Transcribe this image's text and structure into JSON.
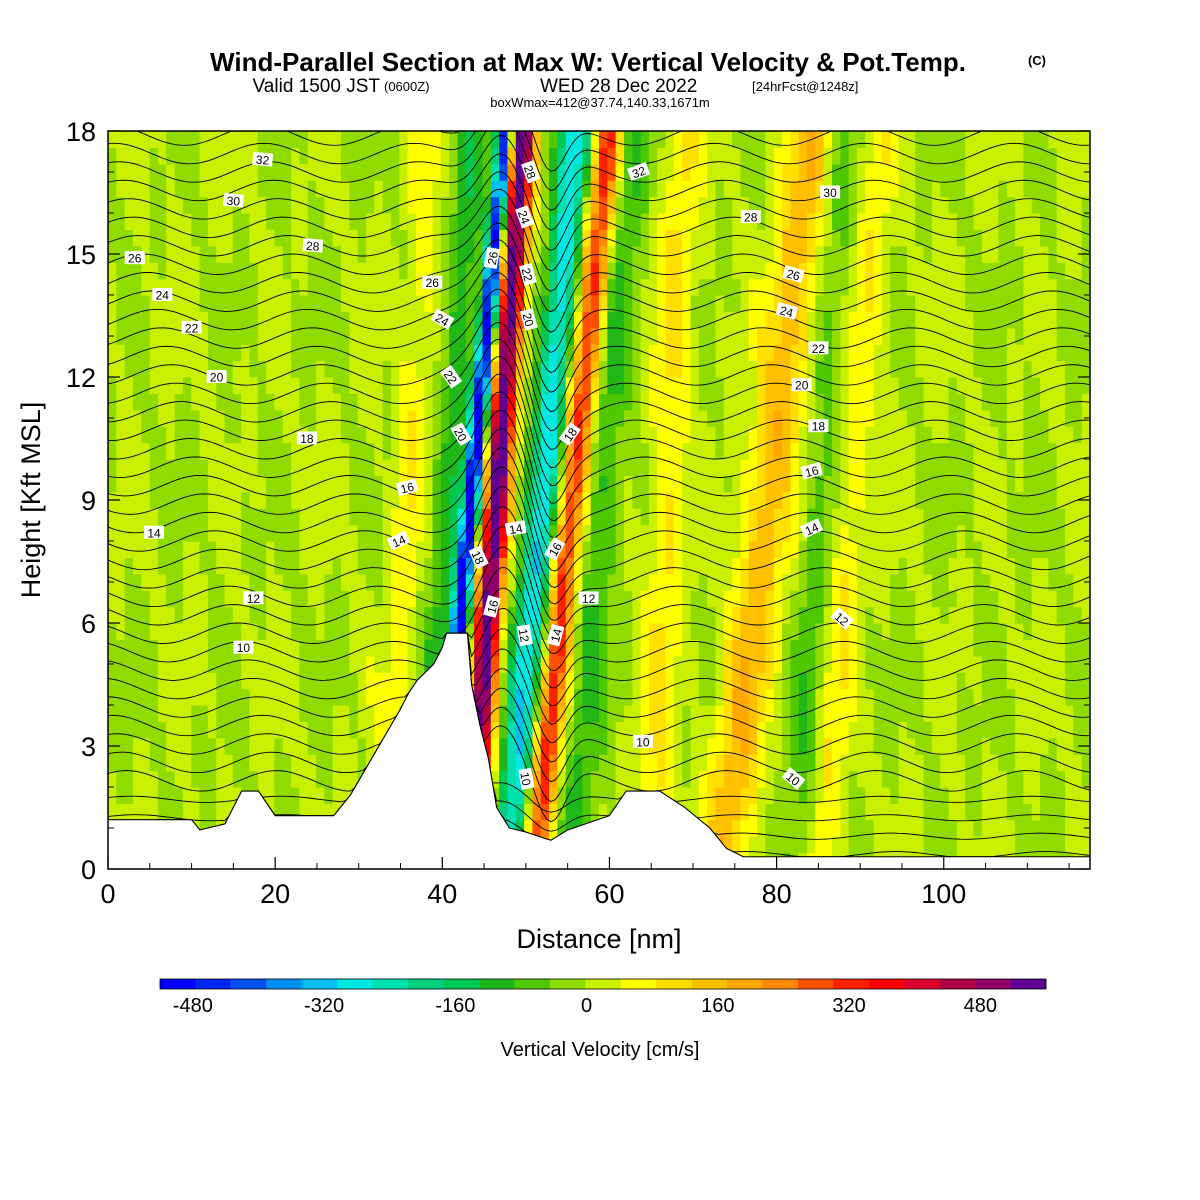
{
  "title": {
    "main": "Wind-Parallel Section at Max W: Vertical Velocity & Pot.Temp.",
    "copyright": "(C)",
    "valid_prefix": "Valid 1500 JST",
    "valid_zulu": "(0600Z)",
    "valid_date": "WED 28 Dec 2022",
    "fcst": "[24hrFcst@1248z]",
    "boxline": "boxWmax=412@37.74,140.33,1671m"
  },
  "chart_data": {
    "type": "heatmap",
    "xlabel": "Distance [nm]",
    "ylabel": "Height [Kft MSL]",
    "xlim": [
      0,
      117.5
    ],
    "ylim": [
      0,
      18
    ],
    "x_ticks": [
      0,
      20,
      40,
      60,
      80,
      100
    ],
    "y_ticks": [
      0,
      3,
      6,
      9,
      12,
      15,
      18
    ],
    "colorbar": {
      "label": "Vertical Velocity [cm/s]",
      "ticks": [
        "-480",
        "-320",
        "-160",
        "0",
        "160",
        "320",
        "480"
      ],
      "tick_values": [
        -480,
        -320,
        -160,
        0,
        160,
        320,
        480
      ],
      "range": [
        -520,
        560
      ],
      "colors": [
        "#0000ff",
        "#0028f0",
        "#0050f0",
        "#0090f0",
        "#00c0f0",
        "#00e8e0",
        "#00e0b0",
        "#00d080",
        "#00c850",
        "#20b818",
        "#50c800",
        "#90dc00",
        "#c8f000",
        "#ffff00",
        "#ffe000",
        "#ffc000",
        "#ffa800",
        "#ff8800",
        "#ff5000",
        "#ff2000",
        "#ff0000",
        "#d8002a",
        "#b00048",
        "#900068",
        "#600090"
      ]
    },
    "vertical_velocity_features": [
      {
        "x": 46.5,
        "peak": 560,
        "width": 1.5,
        "tilt": 0.35
      },
      {
        "x": 43.5,
        "peak": -520,
        "width": 1.0,
        "tilt": 0.45
      },
      {
        "x": 52.0,
        "peak": -300,
        "width": 2.0,
        "tilt": 0.45
      },
      {
        "x": 55.5,
        "peak": 330,
        "width": 1.7,
        "tilt": 0.5
      },
      {
        "x": 41.0,
        "peak": -120,
        "width": 2.0,
        "tilt": 0.3
      },
      {
        "x": 59.0,
        "peak": -100,
        "width": 2.2,
        "tilt": 0.4
      },
      {
        "x": 36.0,
        "peak": 70,
        "width": 2.0,
        "tilt": 0.3
      },
      {
        "x": 67.0,
        "peak": 90,
        "width": 2.2,
        "tilt": 0.2
      },
      {
        "x": 79.0,
        "peak": 160,
        "width": 3.0,
        "tilt": 0.6
      },
      {
        "x": 85.0,
        "peak": -70,
        "width": 2.0,
        "tilt": 0.3
      },
      {
        "x": 89.0,
        "peak": 80,
        "width": 2.0,
        "tilt": 0.4
      }
    ],
    "terrain_kft": [
      [
        0,
        1.2
      ],
      [
        10,
        1.2
      ],
      [
        11,
        0.95
      ],
      [
        14,
        1.1
      ],
      [
        16,
        1.9
      ],
      [
        18,
        1.9
      ],
      [
        20,
        1.3
      ],
      [
        27,
        1.3
      ],
      [
        29,
        1.8
      ],
      [
        31,
        2.5
      ],
      [
        33,
        3.2
      ],
      [
        35,
        3.9
      ],
      [
        36,
        4.3
      ],
      [
        37,
        4.6
      ],
      [
        39,
        5.0
      ],
      [
        40,
        5.4
      ],
      [
        40.5,
        5.75
      ],
      [
        43,
        5.75
      ],
      [
        43.5,
        4.5
      ],
      [
        44.5,
        3.5
      ],
      [
        45.5,
        2.7
      ],
      [
        46.5,
        1.5
      ],
      [
        48,
        1.0
      ],
      [
        50,
        0.9
      ],
      [
        53,
        0.7
      ],
      [
        55,
        0.95
      ],
      [
        60,
        1.3
      ],
      [
        62,
        1.9
      ],
      [
        66,
        1.9
      ],
      [
        69,
        1.5
      ],
      [
        72,
        1.0
      ],
      [
        74,
        0.5
      ],
      [
        76,
        0.3
      ],
      [
        82,
        0.3
      ],
      [
        117.5,
        0.3
      ]
    ],
    "theta_contour_labels": [
      {
        "text": "32",
        "x": 18.5,
        "y": 17.3,
        "rot": 5
      },
      {
        "text": "30",
        "x": 15.0,
        "y": 16.3,
        "rot": 5
      },
      {
        "text": "28",
        "x": 24.5,
        "y": 15.2,
        "rot": 5
      },
      {
        "text": "26",
        "x": 3.2,
        "y": 14.9,
        "rot": 0
      },
      {
        "text": "24",
        "x": 6.5,
        "y": 14.0,
        "rot": 0
      },
      {
        "text": "22",
        "x": 10.0,
        "y": 13.2,
        "rot": 0
      },
      {
        "text": "20",
        "x": 13.0,
        "y": 12.0,
        "rot": 0
      },
      {
        "text": "18",
        "x": 23.8,
        "y": 10.5,
        "rot": 0
      },
      {
        "text": "14",
        "x": 5.5,
        "y": 8.2,
        "rot": 0
      },
      {
        "text": "12",
        "x": 17.4,
        "y": 6.6,
        "rot": 0
      },
      {
        "text": "10",
        "x": 16.2,
        "y": 5.4,
        "rot": 0
      },
      {
        "text": "16",
        "x": 35.8,
        "y": 9.3,
        "rot": -15
      },
      {
        "text": "14",
        "x": 34.8,
        "y": 8.0,
        "rot": -25
      },
      {
        "text": "26",
        "x": 38.8,
        "y": 14.3,
        "rot": 0
      },
      {
        "text": "24",
        "x": 40.0,
        "y": 13.4,
        "rot": 30
      },
      {
        "text": "22",
        "x": 41.0,
        "y": 12.0,
        "rot": 55
      },
      {
        "text": "20",
        "x": 42.2,
        "y": 10.6,
        "rot": 60
      },
      {
        "text": "18",
        "x": 44.3,
        "y": 7.6,
        "rot": 65
      },
      {
        "text": "16",
        "x": 46.0,
        "y": 6.4,
        "rot": -75
      },
      {
        "text": "14",
        "x": 48.8,
        "y": 8.3,
        "rot": -10
      },
      {
        "text": "12",
        "x": 49.8,
        "y": 5.7,
        "rot": 80
      },
      {
        "text": "14",
        "x": 53.6,
        "y": 5.7,
        "rot": -75
      },
      {
        "text": "16",
        "x": 53.5,
        "y": 7.8,
        "rot": -60
      },
      {
        "text": "18",
        "x": 55.3,
        "y": 10.6,
        "rot": -55
      },
      {
        "text": "12",
        "x": 57.5,
        "y": 6.6,
        "rot": 0
      },
      {
        "text": "10",
        "x": 50.0,
        "y": 2.2,
        "rot": 80
      },
      {
        "text": "28",
        "x": 50.5,
        "y": 17.0,
        "rot": 70
      },
      {
        "text": "26",
        "x": 46.0,
        "y": 14.9,
        "rot": -80
      },
      {
        "text": "24",
        "x": 49.8,
        "y": 15.9,
        "rot": 70
      },
      {
        "text": "22",
        "x": 50.2,
        "y": 14.5,
        "rot": 75
      },
      {
        "text": "20",
        "x": 50.3,
        "y": 13.4,
        "rot": 75
      },
      {
        "text": "32",
        "x": 63.5,
        "y": 17.0,
        "rot": -20
      },
      {
        "text": "30",
        "x": 86.4,
        "y": 16.5,
        "rot": 0
      },
      {
        "text": "28",
        "x": 76.9,
        "y": 15.9,
        "rot": 0
      },
      {
        "text": "26",
        "x": 82.0,
        "y": 14.5,
        "rot": 15
      },
      {
        "text": "24",
        "x": 81.2,
        "y": 13.6,
        "rot": 15
      },
      {
        "text": "22",
        "x": 85.0,
        "y": 12.7,
        "rot": 0
      },
      {
        "text": "20",
        "x": 83.0,
        "y": 11.8,
        "rot": 0
      },
      {
        "text": "18",
        "x": 85.0,
        "y": 10.8,
        "rot": 0
      },
      {
        "text": "16",
        "x": 84.2,
        "y": 9.7,
        "rot": -15
      },
      {
        "text": "14",
        "x": 84.2,
        "y": 8.3,
        "rot": -25
      },
      {
        "text": "12",
        "x": 87.8,
        "y": 6.1,
        "rot": 40
      },
      {
        "text": "10",
        "x": 64.0,
        "y": 3.1,
        "rot": 0
      },
      {
        "text": "10",
        "x": 82.0,
        "y": 2.2,
        "rot": 40
      }
    ]
  }
}
